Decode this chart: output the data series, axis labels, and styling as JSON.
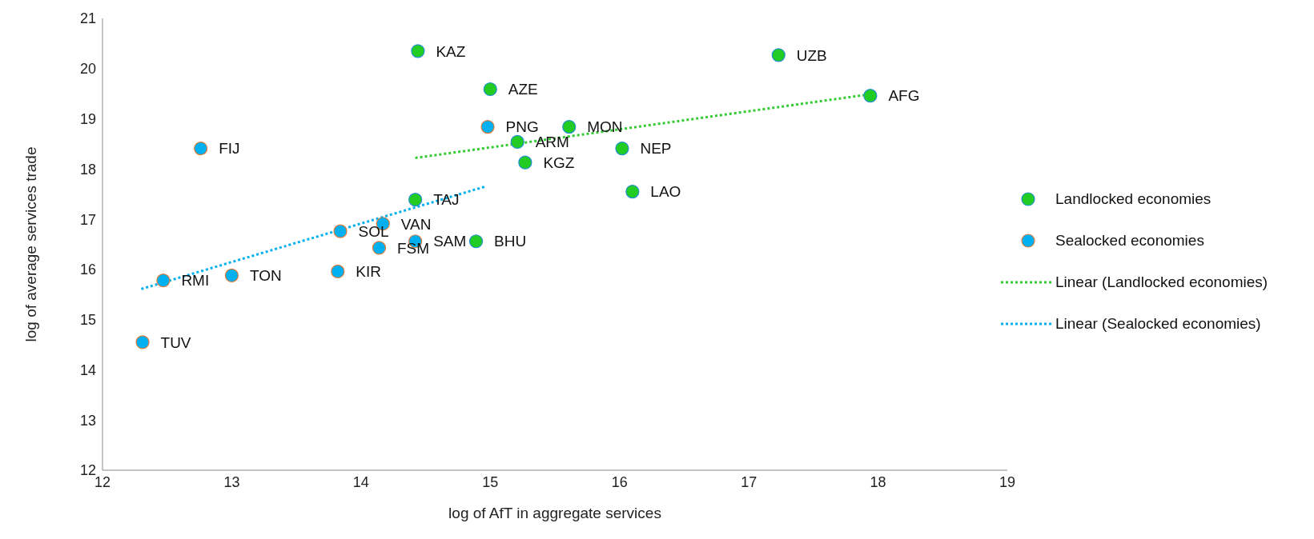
{
  "chart_data": {
    "type": "scatter",
    "xlabel": "log of AfT in aggregate services",
    "ylabel": "log of average  services  trade",
    "xlim": [
      12,
      19
    ],
    "ylim": [
      12,
      21
    ],
    "xticks": [
      12,
      13,
      14,
      15,
      16,
      17,
      18,
      19
    ],
    "yticks": [
      12,
      13,
      14,
      15,
      16,
      17,
      18,
      19,
      20,
      21
    ],
    "marker": "circle",
    "legend": "right",
    "grid": false,
    "series": [
      {
        "name": "Landlocked economies",
        "color": "#22cc22",
        "x": [
          14.44,
          15.0,
          17.23,
          17.94,
          15.61,
          15.21,
          16.02,
          15.27,
          16.1,
          14.42,
          14.89
        ],
        "values": [
          20.35,
          19.59,
          20.27,
          19.46,
          18.84,
          18.54,
          18.41,
          18.13,
          17.55,
          17.39,
          16.56
        ]
      },
      {
        "name": "Sealocked economies",
        "color": "#00b0f0",
        "x": [
          14.98,
          12.76,
          13.84,
          14.17,
          14.14,
          14.42,
          13.82,
          13.0,
          12.47,
          12.31
        ],
        "values": [
          18.84,
          18.41,
          16.76,
          16.91,
          16.43,
          16.56,
          15.96,
          15.88,
          15.78,
          14.55
        ]
      },
      {
        "name": "Linear (Landlocked economies)",
        "type": "line",
        "line_style": "dotted",
        "marker": "none",
        "color": "#33cc33",
        "x": [
          14.42,
          17.94
        ],
        "values": [
          18.22,
          19.49
        ]
      },
      {
        "name": "Linear (Sealocked economies)",
        "type": "line",
        "line_style": "dotted",
        "marker": "none",
        "color": "#00b0f0",
        "x": [
          12.3,
          14.96
        ],
        "values": [
          15.61,
          17.65
        ]
      }
    ],
    "annotations": [
      {
        "text": "KAZ",
        "x": 14.44,
        "y": 20.35
      },
      {
        "text": "AZE",
        "x": 15.0,
        "y": 19.59
      },
      {
        "text": "UZB",
        "x": 17.23,
        "y": 20.27
      },
      {
        "text": "AFG",
        "x": 17.94,
        "y": 19.46
      },
      {
        "text": "MON",
        "x": 15.61,
        "y": 18.84
      },
      {
        "text": "ARM",
        "x": 15.21,
        "y": 18.54
      },
      {
        "text": "NEP",
        "x": 16.02,
        "y": 18.41
      },
      {
        "text": "KGZ",
        "x": 15.27,
        "y": 18.13
      },
      {
        "text": "LAO",
        "x": 16.1,
        "y": 17.55
      },
      {
        "text": "TAJ",
        "x": 14.42,
        "y": 17.39
      },
      {
        "text": "BHU",
        "x": 14.89,
        "y": 16.56
      },
      {
        "text": "PNG",
        "x": 14.98,
        "y": 18.84
      },
      {
        "text": "FIJ",
        "x": 12.76,
        "y": 18.41
      },
      {
        "text": "SOL",
        "x": 13.84,
        "y": 16.76
      },
      {
        "text": "VAN",
        "x": 14.17,
        "y": 16.91
      },
      {
        "text": "FSM",
        "x": 14.14,
        "y": 16.43
      },
      {
        "text": "SAM",
        "x": 14.42,
        "y": 16.56
      },
      {
        "text": "KIR",
        "x": 13.82,
        "y": 15.96
      },
      {
        "text": "TON",
        "x": 13.0,
        "y": 15.88
      },
      {
        "text": "RMI",
        "x": 12.47,
        "y": 15.78
      },
      {
        "text": "TUV",
        "x": 12.31,
        "y": 14.55
      }
    ]
  }
}
